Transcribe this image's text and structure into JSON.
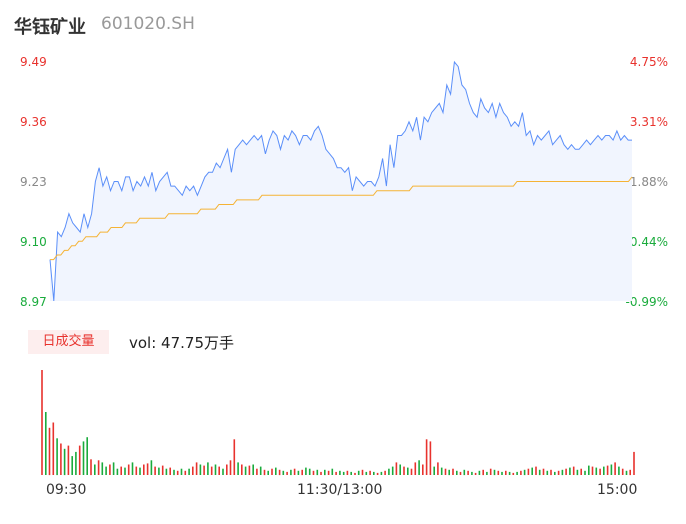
{
  "header": {
    "name": "华钰矿业",
    "code": "601020.SH"
  },
  "volume_panel": {
    "tab_label": "日成交量",
    "vol_text": "vol: 47.75万手"
  },
  "colors": {
    "price_line": "#5b8ff9",
    "avg_line": "#f5b335",
    "up": "#e8322d",
    "down": "#1aab3c",
    "area": "#f1f5fe"
  },
  "chart_data": [
    {
      "type": "line",
      "title": "",
      "x_ticks": [
        "09:30",
        "11:30/13:00",
        "15:00"
      ],
      "y_ticks_price": [
        "9.49",
        "9.36",
        "9.23",
        "9.10",
        "8.97"
      ],
      "y_ticks_percent": [
        "4.75%",
        "3.31%",
        "1.88%",
        "0.44%",
        "-0.99%"
      ],
      "ylim": [
        8.97,
        9.49
      ],
      "grid": false,
      "series": [
        {
          "values": [
            9.06,
            8.97,
            9.12,
            9.11,
            9.13,
            9.16,
            9.14,
            9.13,
            9.12,
            9.16,
            9.13,
            9.16,
            9.23,
            9.26,
            9.22,
            9.24,
            9.21,
            9.23,
            9.23,
            9.21,
            9.24,
            9.24,
            9.21,
            9.23,
            9.22,
            9.24,
            9.22,
            9.25,
            9.21,
            9.23,
            9.24,
            9.25,
            9.22,
            9.22,
            9.21,
            9.2,
            9.22,
            9.21,
            9.22,
            9.2,
            9.22,
            9.24,
            9.25,
            9.25,
            9.27,
            9.26,
            9.28,
            9.3,
            9.25,
            9.3,
            9.31,
            9.32,
            9.31,
            9.32,
            9.33,
            9.32,
            9.33,
            9.29,
            9.32,
            9.34,
            9.33,
            9.3,
            9.33,
            9.32,
            9.34,
            9.33,
            9.31,
            9.33,
            9.33,
            9.32,
            9.34,
            9.35,
            9.33,
            9.3,
            9.29,
            9.28,
            9.26,
            9.26,
            9.25,
            9.26,
            9.21,
            9.24,
            9.23,
            9.22,
            9.23,
            9.23,
            9.22,
            9.24,
            9.28,
            9.22,
            9.31,
            9.26,
            9.33,
            9.33,
            9.34,
            9.36,
            9.34,
            9.37,
            9.32,
            9.37,
            9.36,
            9.38,
            9.39,
            9.4,
            9.38,
            9.44,
            9.42,
            9.49,
            9.48,
            9.44,
            9.43,
            9.4,
            9.38,
            9.37,
            9.41,
            9.39,
            9.38,
            9.4,
            9.37,
            9.4,
            9.38,
            9.37,
            9.35,
            9.36,
            9.35,
            9.38,
            9.33,
            9.34,
            9.31,
            9.33,
            9.32,
            9.33,
            9.34,
            9.31,
            9.32,
            9.33,
            9.31,
            9.3,
            9.31,
            9.3,
            9.3,
            9.31,
            9.32,
            9.31,
            9.32,
            9.33,
            9.32,
            9.33,
            9.33,
            9.32,
            9.34,
            9.32,
            9.33,
            9.32,
            9.32
          ],
          "color": "#5b8ff9"
        },
        {
          "values": [
            9.06,
            9.06,
            9.07,
            9.07,
            9.08,
            9.08,
            9.09,
            9.09,
            9.1,
            9.1,
            9.11,
            9.11,
            9.11,
            9.11,
            9.12,
            9.12,
            9.12,
            9.13,
            9.13,
            9.13,
            9.13,
            9.14,
            9.14,
            9.14,
            9.14,
            9.15,
            9.15,
            9.15,
            9.15,
            9.15,
            9.15,
            9.15,
            9.15,
            9.16,
            9.16,
            9.16,
            9.16,
            9.16,
            9.16,
            9.16,
            9.16,
            9.16,
            9.17,
            9.17,
            9.17,
            9.17,
            9.17,
            9.18,
            9.18,
            9.18,
            9.18,
            9.18,
            9.19,
            9.19,
            9.19,
            9.19,
            9.19,
            9.19,
            9.19,
            9.2,
            9.2,
            9.2,
            9.2,
            9.2,
            9.2,
            9.2,
            9.2,
            9.2,
            9.2,
            9.2,
            9.2,
            9.2,
            9.2,
            9.2,
            9.2,
            9.2,
            9.2,
            9.2,
            9.2,
            9.2,
            9.2,
            9.2,
            9.2,
            9.2,
            9.2,
            9.2,
            9.2,
            9.2,
            9.2,
            9.2,
            9.2,
            9.21,
            9.21,
            9.21,
            9.21,
            9.21,
            9.21,
            9.21,
            9.21,
            9.21,
            9.21,
            9.22,
            9.22,
            9.22,
            9.22,
            9.22,
            9.22,
            9.22,
            9.22,
            9.22,
            9.22,
            9.22,
            9.22,
            9.22,
            9.22,
            9.22,
            9.22,
            9.22,
            9.22,
            9.22,
            9.22,
            9.22,
            9.22,
            9.22,
            9.22,
            9.22,
            9.22,
            9.22,
            9.22,
            9.22,
            9.23,
            9.23,
            9.23,
            9.23,
            9.23,
            9.23,
            9.23,
            9.23,
            9.23,
            9.23,
            9.23,
            9.23,
            9.23,
            9.23,
            9.23,
            9.23,
            9.23,
            9.23,
            9.23,
            9.23,
            9.23,
            9.23,
            9.23,
            9.23,
            9.23,
            9.23,
            9.23,
            9.23,
            9.23,
            9.23,
            9.23,
            9.23,
            9.24
          ],
          "color": "#f5b335"
        }
      ]
    },
    {
      "type": "bar",
      "title": "",
      "series": [
        {
          "values": [
            100,
            60,
            45,
            50,
            35,
            30,
            25,
            28,
            18,
            22,
            28,
            32,
            36,
            15,
            10,
            14,
            12,
            8,
            10,
            12,
            6,
            8,
            7,
            10,
            12,
            8,
            7,
            10,
            11,
            14,
            8,
            7,
            9,
            6,
            7,
            5,
            4,
            6,
            4,
            6,
            8,
            12,
            10,
            9,
            12,
            8,
            10,
            8,
            6,
            10,
            14,
            34,
            12,
            10,
            8,
            9,
            10,
            6,
            8,
            5,
            4,
            6,
            7,
            5,
            4,
            3,
            5,
            6,
            4,
            5,
            7,
            6,
            4,
            5,
            3,
            5,
            4,
            6,
            3,
            4,
            3,
            4,
            3,
            2,
            4,
            5,
            3,
            4,
            3,
            2,
            3,
            4,
            6,
            8,
            12,
            10,
            8,
            7,
            6,
            12,
            14,
            10,
            34,
            32,
            8,
            12,
            7,
            6,
            5,
            6,
            4,
            3,
            5,
            4,
            3,
            2,
            4,
            5,
            3,
            6,
            5,
            4,
            3,
            4,
            3,
            2,
            3,
            4,
            5,
            6,
            7,
            8,
            5,
            6,
            4,
            5,
            3,
            4,
            5,
            6,
            7,
            8,
            5,
            6,
            4,
            9,
            8,
            7,
            6,
            8,
            9,
            10,
            12,
            8,
            6,
            4,
            5,
            22
          ],
          "colors": [
            "up",
            "down",
            "up",
            "up",
            "down",
            "up",
            "down",
            "up",
            "down",
            "down",
            "up",
            "down",
            "down",
            "up",
            "down",
            "up",
            "down",
            "down",
            "up",
            "down",
            "down",
            "up",
            "down",
            "up",
            "down",
            "up",
            "down",
            "up",
            "up",
            "down",
            "up",
            "down",
            "up",
            "down",
            "up",
            "down",
            "up",
            "down",
            "up",
            "down",
            "up",
            "up",
            "down",
            "up",
            "down",
            "up",
            "down",
            "up",
            "down",
            "up",
            "up",
            "up",
            "down",
            "up",
            "down",
            "up",
            "down",
            "up",
            "down",
            "up",
            "down",
            "up",
            "down",
            "up",
            "down",
            "up",
            "down",
            "up",
            "down",
            "up",
            "down",
            "down",
            "up",
            "down",
            "up",
            "down",
            "up",
            "down",
            "up",
            "down",
            "down",
            "up",
            "down",
            "up",
            "down",
            "up",
            "down",
            "up",
            "down",
            "up",
            "down",
            "up",
            "down",
            "down",
            "up",
            "down",
            "up",
            "down",
            "up",
            "up",
            "down",
            "up",
            "up",
            "up",
            "down",
            "up",
            "down",
            "up",
            "down",
            "up",
            "down",
            "up",
            "down",
            "up",
            "down",
            "up",
            "down",
            "up",
            "down",
            "up",
            "down",
            "up",
            "down",
            "up",
            "down",
            "up",
            "down",
            "up",
            "down",
            "up",
            "down",
            "up",
            "down",
            "up",
            "down",
            "up",
            "down",
            "up",
            "down",
            "up",
            "down",
            "up",
            "down",
            "up",
            "down",
            "down",
            "up",
            "down",
            "up",
            "down",
            "up",
            "down",
            "up",
            "down",
            "up",
            "down",
            "up",
            "up"
          ]
        }
      ]
    }
  ]
}
